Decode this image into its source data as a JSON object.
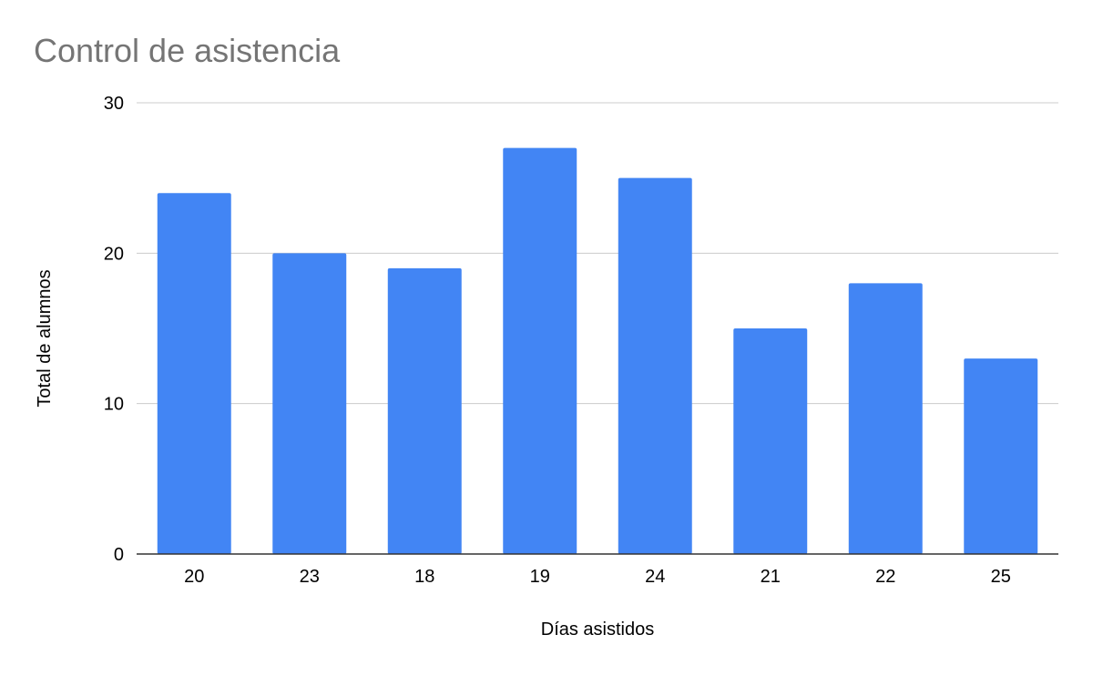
{
  "chart_data": {
    "type": "bar",
    "title": "Control de asistencia",
    "xlabel": "Días asistidos",
    "ylabel": "Total de alumnos",
    "categories": [
      "20",
      "23",
      "18",
      "19",
      "24",
      "21",
      "22",
      "25"
    ],
    "values": [
      24,
      20,
      19,
      27,
      25,
      15,
      18,
      13
    ],
    "ylim": [
      0,
      30
    ],
    "yticks": [
      0,
      10,
      20,
      30
    ],
    "grid": true,
    "legend": "none",
    "colors": {
      "bar": "#4285F4",
      "grid": "#cccccc",
      "axis": "#333333",
      "title": "#757575"
    }
  }
}
